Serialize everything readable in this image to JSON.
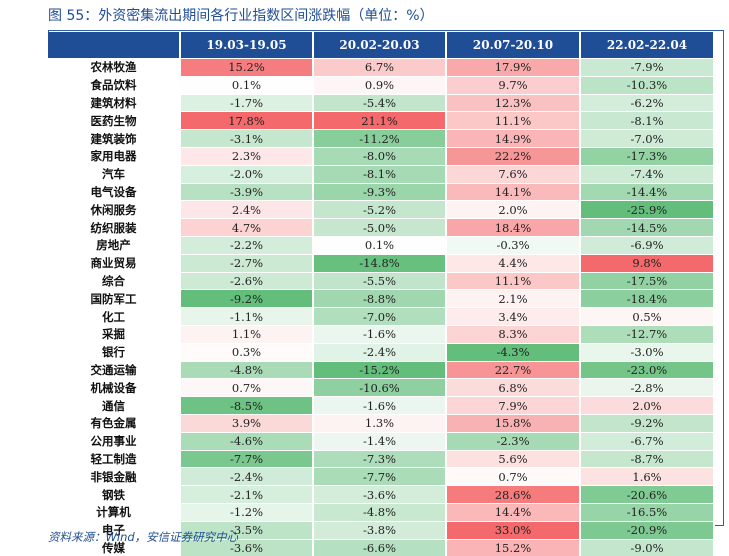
{
  "title": "图 55：外资密集流出期间各行业指数区间涨跌幅（单位：%）",
  "source": "资料来源：Wind，安信证券研究中心",
  "columns": [
    "",
    "19.03-19.05",
    "20.02-20.03",
    "20.07-20.10",
    "22.02-22.04"
  ],
  "rows": [
    {
      "name": "农林牧渔",
      "values": [
        "15.2%",
        "6.7%",
        "17.9%",
        "-7.9%"
      ]
    },
    {
      "name": "食品饮料",
      "values": [
        "0.1%",
        "0.9%",
        "9.7%",
        "-10.3%"
      ]
    },
    {
      "name": "建筑材料",
      "values": [
        "-1.7%",
        "-5.4%",
        "12.3%",
        "-6.2%"
      ]
    },
    {
      "name": "医药生物",
      "values": [
        "17.8%",
        "21.1%",
        "11.1%",
        "-8.1%"
      ]
    },
    {
      "name": "建筑装饰",
      "values": [
        "-3.1%",
        "-11.2%",
        "14.9%",
        "-7.0%"
      ]
    },
    {
      "name": "家用电器",
      "values": [
        "2.3%",
        "-8.0%",
        "22.2%",
        "-17.3%"
      ]
    },
    {
      "name": "汽车",
      "values": [
        "-2.0%",
        "-8.1%",
        "7.6%",
        "-7.4%"
      ]
    },
    {
      "name": "电气设备",
      "values": [
        "-3.9%",
        "-9.3%",
        "14.1%",
        "-14.4%"
      ]
    },
    {
      "name": "休闲服务",
      "values": [
        "2.4%",
        "-5.2%",
        "2.0%",
        "-25.9%"
      ]
    },
    {
      "name": "纺织服装",
      "values": [
        "4.7%",
        "-5.0%",
        "18.4%",
        "-14.5%"
      ]
    },
    {
      "name": "房地产",
      "values": [
        "-2.2%",
        "0.1%",
        "-0.3%",
        "-6.9%"
      ]
    },
    {
      "name": "商业贸易",
      "values": [
        "-2.7%",
        "-14.8%",
        "4.4%",
        "9.8%"
      ]
    },
    {
      "name": "综合",
      "values": [
        "-2.6%",
        "-5.5%",
        "11.1%",
        "-17.5%"
      ]
    },
    {
      "name": "国防军工",
      "values": [
        "-9.2%",
        "-8.8%",
        "2.1%",
        "-18.4%"
      ]
    },
    {
      "name": "化工",
      "values": [
        "-1.1%",
        "-7.0%",
        "3.4%",
        "0.5%"
      ]
    },
    {
      "name": "采掘",
      "values": [
        "1.1%",
        "-1.6%",
        "8.3%",
        "-12.7%"
      ]
    },
    {
      "name": "银行",
      "values": [
        "0.3%",
        "-2.4%",
        "-4.3%",
        "-3.0%"
      ]
    },
    {
      "name": "交通运输",
      "values": [
        "-4.8%",
        "-15.2%",
        "22.7%",
        "-23.0%"
      ]
    },
    {
      "name": "机械设备",
      "values": [
        "0.7%",
        "-10.6%",
        "6.8%",
        "-2.8%"
      ]
    },
    {
      "name": "通信",
      "values": [
        "-8.5%",
        "-1.6%",
        "7.9%",
        "2.0%"
      ]
    },
    {
      "name": "有色金属",
      "values": [
        "3.9%",
        "1.3%",
        "15.8%",
        "-9.2%"
      ]
    },
    {
      "name": "公用事业",
      "values": [
        "-4.6%",
        "-1.4%",
        "-2.3%",
        "-6.7%"
      ]
    },
    {
      "name": "轻工制造",
      "values": [
        "-7.7%",
        "-7.3%",
        "5.6%",
        "-8.7%"
      ]
    },
    {
      "name": "非银金融",
      "values": [
        "-2.4%",
        "-7.7%",
        "0.7%",
        "1.6%"
      ]
    },
    {
      "name": "钢铁",
      "values": [
        "-2.1%",
        "-3.6%",
        "28.6%",
        "-20.6%"
      ]
    },
    {
      "name": "计算机",
      "values": [
        "-1.2%",
        "-4.8%",
        "14.4%",
        "-16.5%"
      ]
    },
    {
      "name": "电子",
      "values": [
        "-3.5%",
        "-3.8%",
        "33.0%",
        "-20.9%"
      ]
    },
    {
      "name": "传媒",
      "values": [
        "-3.6%",
        "-6.6%",
        "15.2%",
        "-9.0%"
      ]
    }
  ],
  "colors": {
    "header": "#1f4e96",
    "positive_max": "#f4696b",
    "negative_max": "#63be7b",
    "neutral": "#ffffff"
  }
}
